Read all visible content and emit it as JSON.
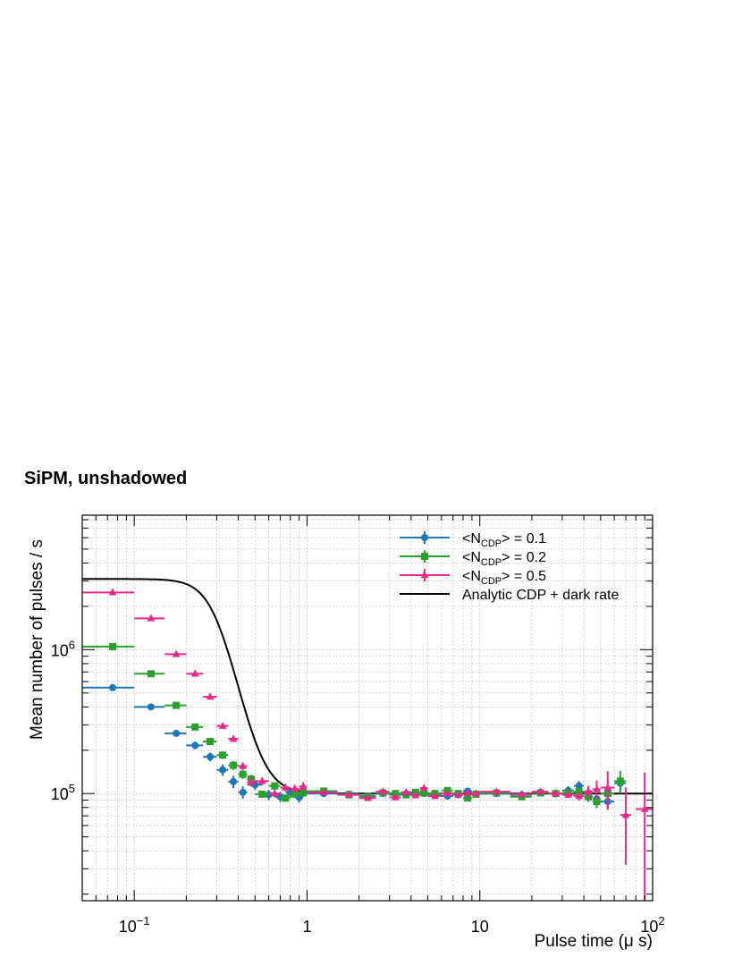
{
  "chart_data": {
    "type": "scatter",
    "title": "SiPM, unshadowed",
    "xlabel": "Pulse time (μ s)",
    "ylabel": "Mean number of pulses / s",
    "xscale": "log",
    "yscale": "log",
    "xlim": [
      0.05,
      100
    ],
    "ylim": [
      18000,
      8600000
    ],
    "grid": true,
    "legend_position": "top-right",
    "x_ticks": [
      {
        "value": 0.1,
        "base": "10",
        "exp": "−1"
      },
      {
        "value": 1,
        "base": "1",
        "exp": ""
      },
      {
        "value": 10,
        "base": "10",
        "exp": ""
      },
      {
        "value": 100,
        "base": "10",
        "exp": "2"
      }
    ],
    "y_ticks": [
      {
        "value": 100000,
        "base": "10",
        "exp": "5"
      },
      {
        "value": 1000000,
        "base": "10",
        "exp": "6"
      }
    ],
    "series": [
      {
        "name": "<N_CDP> = 0.1",
        "label_main": "<N",
        "label_sub": "CDP",
        "label_tail": "> = 0.1",
        "color": "#1f77b4",
        "marker": "circle",
        "points": [
          {
            "x": 0.075,
            "y": 545000,
            "xerr": 0.025,
            "yerr": 0.01
          },
          {
            "x": 0.125,
            "y": 400000,
            "xerr": 0.025,
            "yerr": 0.03
          },
          {
            "x": 0.175,
            "y": 262000,
            "xerr": 0.025,
            "yerr": 0.04
          },
          {
            "x": 0.225,
            "y": 216000,
            "xerr": 0.025,
            "yerr": 0.06
          },
          {
            "x": 0.275,
            "y": 180000,
            "xerr": 0.025,
            "yerr": 0.07
          },
          {
            "x": 0.325,
            "y": 146000,
            "xerr": 0.025,
            "yerr": 0.09
          },
          {
            "x": 0.375,
            "y": 121000,
            "xerr": 0.025,
            "yerr": 0.1
          },
          {
            "x": 0.425,
            "y": 102000,
            "xerr": 0.025,
            "yerr": 0.1
          },
          {
            "x": 0.5,
            "y": 115000,
            "xerr": 0.05,
            "yerr": 0.08
          },
          {
            "x": 0.6,
            "y": 98000,
            "xerr": 0.05,
            "yerr": 0.08
          },
          {
            "x": 0.7,
            "y": 95000,
            "xerr": 0.05,
            "yerr": 0.08
          },
          {
            "x": 0.8,
            "y": 102000,
            "xerr": 0.05,
            "yerr": 0.08
          },
          {
            "x": 0.9,
            "y": 94000,
            "xerr": 0.05,
            "yerr": 0.08
          },
          {
            "x": 1.25,
            "y": 100000,
            "xerr": 0.25,
            "yerr": 0.04
          },
          {
            "x": 1.75,
            "y": 99000,
            "xerr": 0.25,
            "yerr": 0.04
          },
          {
            "x": 2.25,
            "y": 96000,
            "xerr": 0.25,
            "yerr": 0.04
          },
          {
            "x": 2.75,
            "y": 100000,
            "xerr": 0.25,
            "yerr": 0.04
          },
          {
            "x": 3.25,
            "y": 98000,
            "xerr": 0.25,
            "yerr": 0.04
          },
          {
            "x": 3.75,
            "y": 100000,
            "xerr": 0.25,
            "yerr": 0.04
          },
          {
            "x": 4.25,
            "y": 99000,
            "xerr": 0.25,
            "yerr": 0.04
          },
          {
            "x": 4.75,
            "y": 100000,
            "xerr": 0.25,
            "yerr": 0.04
          },
          {
            "x": 5.5,
            "y": 99000,
            "xerr": 0.5,
            "yerr": 0.04
          },
          {
            "x": 6.5,
            "y": 96000,
            "xerr": 0.5,
            "yerr": 0.04
          },
          {
            "x": 7.5,
            "y": 98000,
            "xerr": 0.5,
            "yerr": 0.04
          },
          {
            "x": 8.5,
            "y": 104000,
            "xerr": 0.5,
            "yerr": 0.04
          },
          {
            "x": 9.5,
            "y": 99000,
            "xerr": 0.5,
            "yerr": 0.04
          },
          {
            "x": 12.5,
            "y": 100000,
            "xerr": 2.5,
            "yerr": 0.04
          },
          {
            "x": 17.5,
            "y": 98000,
            "xerr": 2.5,
            "yerr": 0.04
          },
          {
            "x": 22.5,
            "y": 102000,
            "xerr": 2.5,
            "yerr": 0.05
          },
          {
            "x": 27.5,
            "y": 100000,
            "xerr": 2.5,
            "yerr": 0.06
          },
          {
            "x": 32.5,
            "y": 105000,
            "xerr": 2.5,
            "yerr": 0.07
          },
          {
            "x": 37.5,
            "y": 113000,
            "xerr": 2.5,
            "yerr": 0.08
          },
          {
            "x": 42.5,
            "y": 101000,
            "xerr": 2.5,
            "yerr": 0.09
          },
          {
            "x": 47.5,
            "y": 92000,
            "xerr": 2.5,
            "yerr": 0.1
          },
          {
            "x": 55,
            "y": 88000,
            "xerr": 5,
            "yerr": 0.12
          },
          {
            "x": 65,
            "y": 118000,
            "xerr": 5,
            "yerr": 0.13
          }
        ]
      },
      {
        "name": "<N_CDP> = 0.2",
        "label_main": "<N",
        "label_sub": "CDP",
        "label_tail": "> = 0.2",
        "color": "#2ca02c",
        "marker": "square",
        "points": [
          {
            "x": 0.075,
            "y": 1050000,
            "xerr": 0.025,
            "yerr": 0.01
          },
          {
            "x": 0.125,
            "y": 680000,
            "xerr": 0.025,
            "yerr": 0.02
          },
          {
            "x": 0.175,
            "y": 410000,
            "xerr": 0.025,
            "yerr": 0.03
          },
          {
            "x": 0.225,
            "y": 290000,
            "xerr": 0.025,
            "yerr": 0.04
          },
          {
            "x": 0.275,
            "y": 230000,
            "xerr": 0.025,
            "yerr": 0.05
          },
          {
            "x": 0.325,
            "y": 185000,
            "xerr": 0.025,
            "yerr": 0.06
          },
          {
            "x": 0.375,
            "y": 157000,
            "xerr": 0.025,
            "yerr": 0.07
          },
          {
            "x": 0.425,
            "y": 136000,
            "xerr": 0.025,
            "yerr": 0.07
          },
          {
            "x": 0.475,
            "y": 126000,
            "xerr": 0.025,
            "yerr": 0.07
          },
          {
            "x": 0.55,
            "y": 99000,
            "xerr": 0.05,
            "yerr": 0.06
          },
          {
            "x": 0.65,
            "y": 113000,
            "xerr": 0.05,
            "yerr": 0.06
          },
          {
            "x": 0.75,
            "y": 93000,
            "xerr": 0.05,
            "yerr": 0.06
          },
          {
            "x": 0.85,
            "y": 99000,
            "xerr": 0.05,
            "yerr": 0.06
          },
          {
            "x": 0.95,
            "y": 101000,
            "xerr": 0.05,
            "yerr": 0.06
          },
          {
            "x": 1.25,
            "y": 104000,
            "xerr": 0.25,
            "yerr": 0.03
          },
          {
            "x": 1.75,
            "y": 98000,
            "xerr": 0.25,
            "yerr": 0.03
          },
          {
            "x": 2.25,
            "y": 95000,
            "xerr": 0.25,
            "yerr": 0.03
          },
          {
            "x": 2.75,
            "y": 101000,
            "xerr": 0.25,
            "yerr": 0.03
          },
          {
            "x": 3.25,
            "y": 100000,
            "xerr": 0.25,
            "yerr": 0.03
          },
          {
            "x": 3.75,
            "y": 98000,
            "xerr": 0.25,
            "yerr": 0.03
          },
          {
            "x": 4.25,
            "y": 102000,
            "xerr": 0.25,
            "yerr": 0.03
          },
          {
            "x": 4.75,
            "y": 101000,
            "xerr": 0.25,
            "yerr": 0.03
          },
          {
            "x": 5.5,
            "y": 100000,
            "xerr": 0.5,
            "yerr": 0.03
          },
          {
            "x": 6.5,
            "y": 105000,
            "xerr": 0.5,
            "yerr": 0.03
          },
          {
            "x": 7.5,
            "y": 100000,
            "xerr": 0.5,
            "yerr": 0.03
          },
          {
            "x": 8.5,
            "y": 93000,
            "xerr": 0.5,
            "yerr": 0.03
          },
          {
            "x": 9.5,
            "y": 99000,
            "xerr": 0.5,
            "yerr": 0.03
          },
          {
            "x": 12.5,
            "y": 101000,
            "xerr": 2.5,
            "yerr": 0.03
          },
          {
            "x": 17.5,
            "y": 95000,
            "xerr": 2.5,
            "yerr": 0.03
          },
          {
            "x": 22.5,
            "y": 101000,
            "xerr": 2.5,
            "yerr": 0.04
          },
          {
            "x": 27.5,
            "y": 100000,
            "xerr": 2.5,
            "yerr": 0.05
          },
          {
            "x": 32.5,
            "y": 101000,
            "xerr": 2.5,
            "yerr": 0.06
          },
          {
            "x": 37.5,
            "y": 103000,
            "xerr": 2.5,
            "yerr": 0.07
          },
          {
            "x": 42.5,
            "y": 95000,
            "xerr": 2.5,
            "yerr": 0.08
          },
          {
            "x": 47.5,
            "y": 88000,
            "xerr": 2.5,
            "yerr": 0.1
          },
          {
            "x": 55,
            "y": 100000,
            "xerr": 5,
            "yerr": 0.12
          },
          {
            "x": 65,
            "y": 122000,
            "xerr": 5,
            "yerr": 0.18
          }
        ]
      },
      {
        "name": "<N_CDP> = 0.5",
        "label_main": "<N",
        "label_sub": "CDP",
        "label_tail": "> = 0.5",
        "color": "#e7298a",
        "marker": "triangle",
        "points": [
          {
            "x": 0.075,
            "y": 2500000,
            "xerr": 0.025,
            "yerr": 0.01
          },
          {
            "x": 0.125,
            "y": 1650000,
            "xerr": 0.025,
            "yerr": 0.01
          },
          {
            "x": 0.175,
            "y": 930000,
            "xerr": 0.025,
            "yerr": 0.02
          },
          {
            "x": 0.225,
            "y": 680000,
            "xerr": 0.025,
            "yerr": 0.02
          },
          {
            "x": 0.275,
            "y": 470000,
            "xerr": 0.025,
            "yerr": 0.03
          },
          {
            "x": 0.325,
            "y": 295000,
            "xerr": 0.025,
            "yerr": 0.04
          },
          {
            "x": 0.375,
            "y": 240000,
            "xerr": 0.025,
            "yerr": 0.05
          },
          {
            "x": 0.425,
            "y": 155000,
            "xerr": 0.025,
            "yerr": 0.06
          },
          {
            "x": 0.475,
            "y": 120000,
            "xerr": 0.025,
            "yerr": 0.07
          },
          {
            "x": 0.55,
            "y": 122000,
            "xerr": 0.05,
            "yerr": 0.06
          },
          {
            "x": 0.65,
            "y": 100000,
            "xerr": 0.05,
            "yerr": 0.06
          },
          {
            "x": 0.75,
            "y": 110000,
            "xerr": 0.05,
            "yerr": 0.06
          },
          {
            "x": 0.85,
            "y": 108000,
            "xerr": 0.05,
            "yerr": 0.06
          },
          {
            "x": 0.95,
            "y": 112000,
            "xerr": 0.05,
            "yerr": 0.07
          },
          {
            "x": 1.25,
            "y": 102000,
            "xerr": 0.25,
            "yerr": 0.03
          },
          {
            "x": 1.75,
            "y": 98000,
            "xerr": 0.25,
            "yerr": 0.03
          },
          {
            "x": 2.25,
            "y": 93000,
            "xerr": 0.25,
            "yerr": 0.03
          },
          {
            "x": 2.75,
            "y": 103000,
            "xerr": 0.25,
            "yerr": 0.03
          },
          {
            "x": 3.25,
            "y": 94000,
            "xerr": 0.25,
            "yerr": 0.03
          },
          {
            "x": 3.75,
            "y": 102000,
            "xerr": 0.25,
            "yerr": 0.03
          },
          {
            "x": 4.25,
            "y": 97000,
            "xerr": 0.25,
            "yerr": 0.03
          },
          {
            "x": 4.75,
            "y": 109000,
            "xerr": 0.25,
            "yerr": 0.04
          },
          {
            "x": 5.5,
            "y": 96000,
            "xerr": 0.5,
            "yerr": 0.03
          },
          {
            "x": 6.5,
            "y": 100000,
            "xerr": 0.5,
            "yerr": 0.03
          },
          {
            "x": 7.5,
            "y": 98000,
            "xerr": 0.5,
            "yerr": 0.03
          },
          {
            "x": 8.5,
            "y": 101000,
            "xerr": 0.5,
            "yerr": 0.03
          },
          {
            "x": 9.5,
            "y": 100000,
            "xerr": 0.5,
            "yerr": 0.03
          },
          {
            "x": 12.5,
            "y": 103000,
            "xerr": 2.5,
            "yerr": 0.03
          },
          {
            "x": 17.5,
            "y": 99000,
            "xerr": 2.5,
            "yerr": 0.03
          },
          {
            "x": 22.5,
            "y": 103000,
            "xerr": 2.5,
            "yerr": 0.04
          },
          {
            "x": 27.5,
            "y": 100000,
            "xerr": 2.5,
            "yerr": 0.04
          },
          {
            "x": 32.5,
            "y": 98000,
            "xerr": 2.5,
            "yerr": 0.05
          },
          {
            "x": 37.5,
            "y": 96000,
            "xerr": 2.5,
            "yerr": 0.07
          },
          {
            "x": 42.5,
            "y": 103000,
            "xerr": 2.5,
            "yerr": 0.1
          },
          {
            "x": 47.5,
            "y": 107000,
            "xerr": 2.5,
            "yerr": 0.15
          },
          {
            "x": 55,
            "y": 110000,
            "xerr": 5,
            "yerr": 0.3
          },
          {
            "x": 70,
            "y": 71000,
            "xerr": 5,
            "yerr": 0.55
          },
          {
            "x": 90,
            "y": 78000,
            "xerr": 10,
            "yerr": 0.8
          }
        ]
      }
    ],
    "model": {
      "name": "Analytic CDP + dark rate",
      "color": "#000000",
      "dark_rate": 100000,
      "amplitude": 3000000,
      "rise": 0.3,
      "steepness": 6
    }
  }
}
